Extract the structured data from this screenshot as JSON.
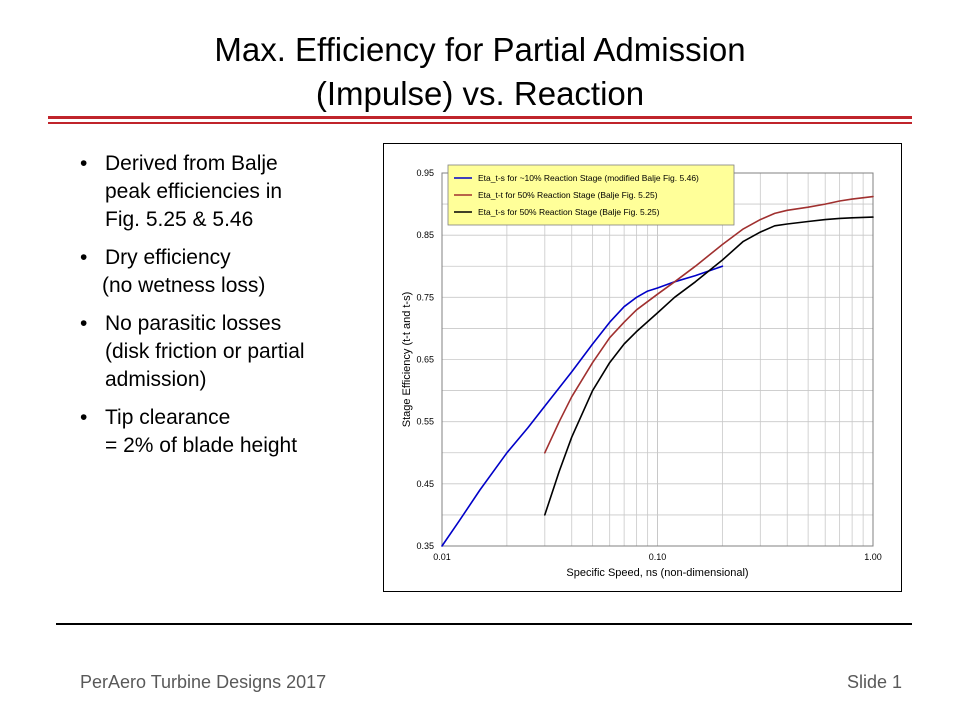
{
  "slide": {
    "title_line1": "Max. Efficiency for Partial Admission",
    "title_line2": "(Impulse) vs. Reaction",
    "footer_left": "PerAero Turbine Designs 2017",
    "footer_right": "Slide 1",
    "bullets": [
      {
        "lines": [
          "Derived from Balje",
          "peak efficiencies in",
          "Fig. 5.25 & 5.46"
        ]
      },
      {
        "lines": [
          "Dry efficiency",
          "(no wetness loss)"
        ]
      },
      {
        "lines": [
          "No parasitic losses",
          "(disk friction or partial",
          "admission)"
        ]
      },
      {
        "lines": [
          "Tip clearance",
          "= 2% of blade height"
        ]
      }
    ],
    "accent_color": "#c0242b"
  },
  "chart_data": {
    "type": "line",
    "xlabel": "Specific Speed, ns (non-dimensional)",
    "ylabel": "Stage Efficiency (t-t and t-s)",
    "xscale": "log",
    "xlim": [
      0.01,
      1.0
    ],
    "ylim": [
      0.35,
      0.95
    ],
    "xticks": [
      "0.01",
      "0.10",
      "1.00"
    ],
    "yticks": [
      "0.35",
      "0.45",
      "0.55",
      "0.65",
      "0.75",
      "0.85",
      "0.95"
    ],
    "grid": true,
    "legend_position": "top-left",
    "legend_bg": "#ffff99",
    "series": [
      {
        "name": "Eta_t-s for ~10% Reaction Stage (modified Balje Fig. 5.46)",
        "color": "#0000c8",
        "x": [
          0.01,
          0.012,
          0.015,
          0.02,
          0.025,
          0.03,
          0.04,
          0.05,
          0.06,
          0.07,
          0.08,
          0.09,
          0.1,
          0.12,
          0.15,
          0.2
        ],
        "y": [
          0.35,
          0.39,
          0.44,
          0.5,
          0.54,
          0.575,
          0.63,
          0.675,
          0.71,
          0.735,
          0.75,
          0.76,
          0.765,
          0.775,
          0.785,
          0.8
        ]
      },
      {
        "name": "Eta_t-t for 50% Reaction Stage (Balje Fig. 5.25)",
        "color": "#a0302f",
        "x": [
          0.03,
          0.035,
          0.04,
          0.05,
          0.06,
          0.07,
          0.08,
          0.1,
          0.12,
          0.15,
          0.2,
          0.25,
          0.3,
          0.35,
          0.4,
          0.5,
          0.6,
          0.7,
          0.8,
          1.0
        ],
        "y": [
          0.5,
          0.55,
          0.59,
          0.645,
          0.685,
          0.71,
          0.73,
          0.755,
          0.775,
          0.8,
          0.835,
          0.86,
          0.875,
          0.885,
          0.89,
          0.895,
          0.9,
          0.905,
          0.908,
          0.912
        ]
      },
      {
        "name": "Eta_t-s for 50% Reaction Stage (Balje Fig. 5.25)",
        "color": "#000000",
        "x": [
          0.03,
          0.035,
          0.04,
          0.05,
          0.06,
          0.07,
          0.08,
          0.1,
          0.12,
          0.15,
          0.2,
          0.25,
          0.3,
          0.35,
          0.4,
          0.5,
          0.6,
          0.7,
          0.8,
          1.0
        ],
        "y": [
          0.4,
          0.47,
          0.525,
          0.6,
          0.645,
          0.675,
          0.695,
          0.725,
          0.75,
          0.775,
          0.81,
          0.84,
          0.855,
          0.865,
          0.868,
          0.872,
          0.875,
          0.877,
          0.878,
          0.879
        ]
      }
    ]
  }
}
